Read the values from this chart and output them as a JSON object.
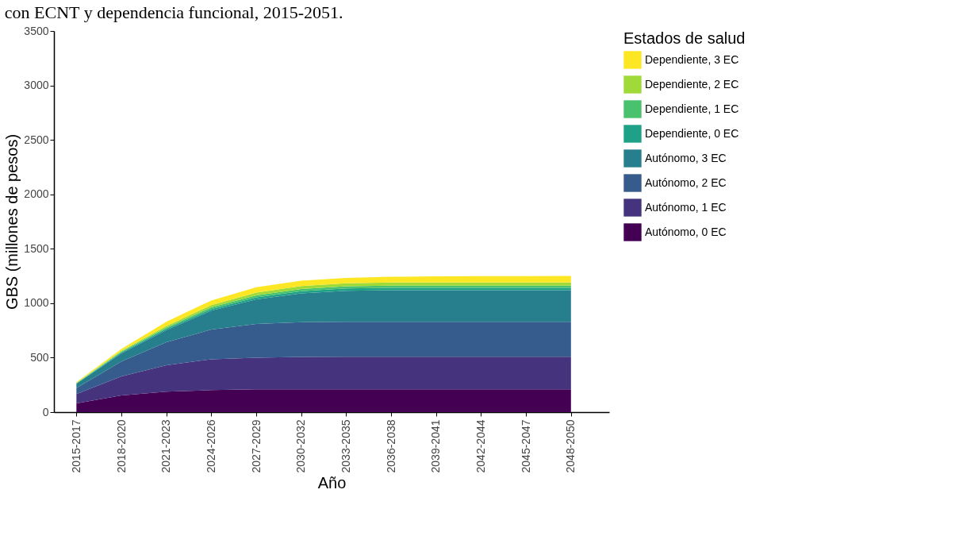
{
  "chart_data": {
    "type": "area",
    "stacked": true,
    "title": "con ECNT y dependencia funcional, 2015-2051.",
    "xlabel": "Año",
    "ylabel": "GBS (millones de pesos)",
    "legend_title": "Estados de salud",
    "legend": "right",
    "grid": false,
    "categories": [
      "2015-2017",
      "2018-2020",
      "2021-2023",
      "2024-2026",
      "2027-2029",
      "2030-2032",
      "2033-2035",
      "2036-2038",
      "2039-2041",
      "2042-2044",
      "2045-2047",
      "2048-2050"
    ],
    "ylim": [
      0,
      3500
    ],
    "yticks": [
      0,
      500,
      1000,
      1500,
      2000,
      2500,
      3000,
      3500
    ],
    "series": [
      {
        "name": "Autónomo, 0 EC",
        "color": "#440154",
        "values": [
          80,
          153,
          187,
          202,
          209,
          209,
          209,
          209,
          209,
          209,
          209,
          209
        ]
      },
      {
        "name": "Autónomo, 1 EC",
        "color": "#46337e",
        "values": [
          85,
          176,
          244,
          283,
          291,
          298,
          300,
          300,
          300,
          300,
          300,
          300
        ]
      },
      {
        "name": "Autónomo, 2 EC",
        "color": "#365c8d",
        "values": [
          55,
          136,
          211,
          273,
          309,
          318,
          320,
          320,
          320,
          320,
          320,
          320
        ]
      },
      {
        "name": "Autónomo, 3 EC",
        "color": "#277f8e",
        "values": [
          40,
          75,
          111,
          173,
          227,
          266,
          285,
          291,
          291,
          291,
          291,
          291
        ]
      },
      {
        "name": "Dependiente, 0 EC",
        "color": "#1fa187",
        "values": [
          3,
          8,
          12,
          15,
          18,
          20,
          21,
          22,
          22,
          22,
          22,
          22
        ]
      },
      {
        "name": "Dependiente, 1 EC",
        "color": "#4ac16d",
        "values": [
          3,
          8,
          12,
          16,
          18,
          19,
          20,
          20,
          20,
          20,
          20,
          20
        ]
      },
      {
        "name": "Dependiente, 2 EC",
        "color": "#a0da39",
        "values": [
          3,
          8,
          14,
          20,
          25,
          27,
          28,
          29,
          29,
          29,
          29,
          29
        ]
      },
      {
        "name": "Dependiente, 3 EC",
        "color": "#fde725",
        "values": [
          6,
          16,
          38,
          43,
          50,
          50,
          50,
          52,
          55,
          57,
          58,
          59
        ]
      }
    ]
  }
}
